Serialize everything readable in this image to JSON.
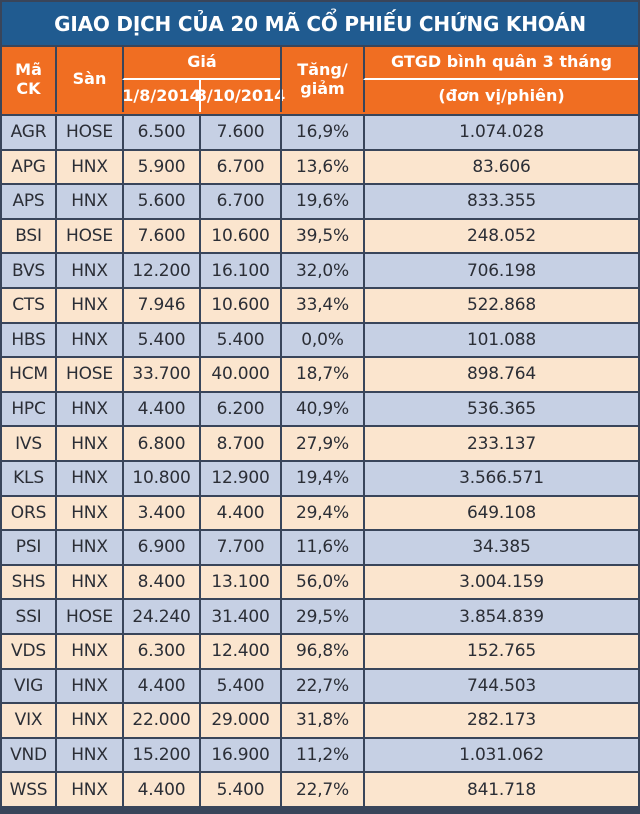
{
  "title": "GIAO DỊCH CỦA 20 MÃ CỔ PHIẾU CHỨNG KHOÁN",
  "header": {
    "code": "Mã CK",
    "exchange": "Sàn",
    "price_group": "Giá",
    "date1": "1/8/2014",
    "date2": "8/10/2014",
    "change_line1": "Tăng/",
    "change_line2": "giảm",
    "gtgd_line1": "GTGD bình quân 3 tháng",
    "gtgd_line2": "(đơn vị/phiên)"
  },
  "colors": {
    "frame_navy": "#39455a",
    "title_blue": "#205b90",
    "header_orange": "#f06e22",
    "row_blue": "#c6d0e4",
    "row_peach": "#fbe5ce",
    "text_dark": "#2b2e36",
    "header_text": "#ffffff"
  },
  "chart_data": {
    "type": "table",
    "title": "GIAO DỊCH CỦA 20 MÃ CỔ PHIẾU CHỨNG KHOÁN",
    "columns": [
      "Mã CK",
      "Sàn",
      "Giá 1/8/2014",
      "Giá 8/10/2014",
      "Tăng/giảm",
      "GTGD bình quân 3 tháng (đơn vị/phiên)"
    ],
    "rows": [
      [
        "AGR",
        "HOSE",
        "6.500",
        "7.600",
        "16,9%",
        "1.074.028"
      ],
      [
        "APG",
        "HNX",
        "5.900",
        "6.700",
        "13,6%",
        "83.606"
      ],
      [
        "APS",
        "HNX",
        "5.600",
        "6.700",
        "19,6%",
        "833.355"
      ],
      [
        "BSI",
        "HOSE",
        "7.600",
        "10.600",
        "39,5%",
        "248.052"
      ],
      [
        "BVS",
        "HNX",
        "12.200",
        "16.100",
        "32,0%",
        "706.198"
      ],
      [
        "CTS",
        "HNX",
        "7.946",
        "10.600",
        "33,4%",
        "522.868"
      ],
      [
        "HBS",
        "HNX",
        "5.400",
        "5.400",
        "0,0%",
        "101.088"
      ],
      [
        "HCM",
        "HOSE",
        "33.700",
        "40.000",
        "18,7%",
        "898.764"
      ],
      [
        "HPC",
        "HNX",
        "4.400",
        "6.200",
        "40,9%",
        "536.365"
      ],
      [
        "IVS",
        "HNX",
        "6.800",
        "8.700",
        "27,9%",
        "233.137"
      ],
      [
        "KLS",
        "HNX",
        "10.800",
        "12.900",
        "19,4%",
        "3.566.571"
      ],
      [
        "ORS",
        "HNX",
        "3.400",
        "4.400",
        "29,4%",
        "649.108"
      ],
      [
        "PSI",
        "HNX",
        "6.900",
        "7.700",
        "11,6%",
        "34.385"
      ],
      [
        "SHS",
        "HNX",
        "8.400",
        "13.100",
        "56,0%",
        "3.004.159"
      ],
      [
        "SSI",
        "HOSE",
        "24.240",
        "31.400",
        "29,5%",
        "3.854.839"
      ],
      [
        "VDS",
        "HNX",
        "6.300",
        "12.400",
        "96,8%",
        "152.765"
      ],
      [
        "VIG",
        "HNX",
        "4.400",
        "5.400",
        "22,7%",
        "744.503"
      ],
      [
        "VIX",
        "HNX",
        "22.000",
        "29.000",
        "31,8%",
        "282.173"
      ],
      [
        "VND",
        "HNX",
        "15.200",
        "16.900",
        "11,2%",
        "1.031.062"
      ],
      [
        "WSS",
        "HNX",
        "4.400",
        "5.400",
        "22,7%",
        "841.718"
      ]
    ]
  }
}
